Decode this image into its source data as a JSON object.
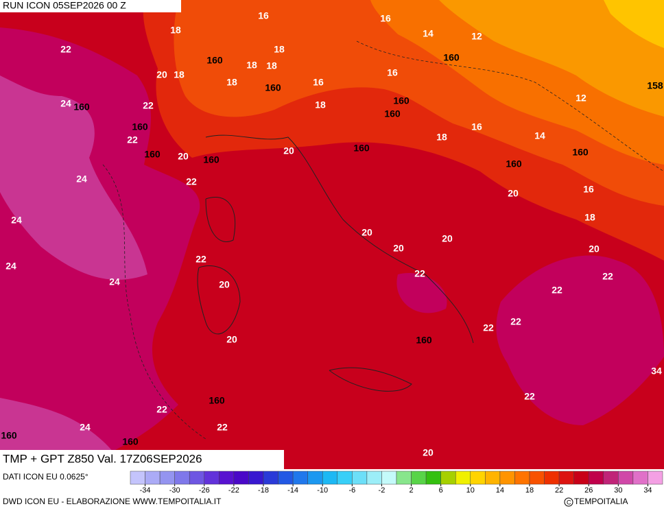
{
  "header": {
    "run": "RUN ICON 05SEP2026 00 Z"
  },
  "footer": {
    "title": "TMP + GPT Z850 Val. 17Z06SEP2026",
    "source": "DATI ICON EU 0.0625°",
    "credit": "DWD ICON EU - ELABORAZIONE WWW.TEMPOITALIA.IT",
    "copyright": "TEMPOITALIA"
  },
  "map": {
    "labels": [
      16,
      16,
      18,
      14,
      12,
      22,
      18,
      160,
      160,
      18,
      18,
      20,
      18,
      16,
      18,
      16,
      160,
      158,
      24,
      160,
      22,
      18,
      160,
      12,
      160,
      160,
      16,
      14,
      22,
      18,
      160,
      160,
      20,
      160,
      20,
      160,
      160,
      24,
      22,
      16,
      20,
      24,
      18,
      20,
      20,
      20,
      20,
      22,
      24,
      24,
      20,
      22,
      22,
      22,
      22,
      22,
      160,
      20,
      34,
      22,
      160,
      22,
      24,
      22,
      160,
      160,
      20
    ]
  },
  "colorbar": {
    "lim": [
      -36,
      36
    ],
    "ticks": [
      -34,
      -30,
      -26,
      -22,
      -18,
      -14,
      -10,
      -6,
      -2,
      2,
      6,
      10,
      14,
      18,
      22,
      26,
      30,
      34
    ],
    "colors": [
      "#c4c4fc",
      "#ababf6",
      "#9494f0",
      "#7f78ea",
      "#6e56e2",
      "#6232da",
      "#5812d0",
      "#4a08c8",
      "#3818d0",
      "#2a3ad8",
      "#2258e4",
      "#2078ec",
      "#1c98f0",
      "#1cb8f4",
      "#38cff8",
      "#6cdff8",
      "#9ceef8",
      "#c4fafa",
      "#88e68c",
      "#58d448",
      "#34c010",
      "#a6d000",
      "#f0f000",
      "#ffd400",
      "#ffb400",
      "#ff9400",
      "#ff7400",
      "#f85200",
      "#ee3000",
      "#dc1410",
      "#c80018",
      "#c0004a",
      "#c02478",
      "#d048a8",
      "#e070c8",
      "#f4a0e4"
    ]
  }
}
